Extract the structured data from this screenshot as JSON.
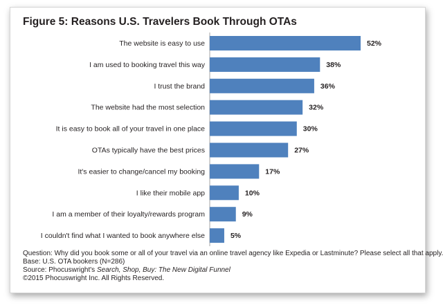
{
  "title": "Figure 5: Reasons U.S. Travelers Book Through OTAs",
  "colors": {
    "bar": "#4f81bd",
    "text": "#231f20",
    "axis": "#a6a6a6"
  },
  "chart_data": {
    "type": "bar",
    "orientation": "horizontal",
    "title": "Figure 5: Reasons U.S. Travelers Book Through OTAs",
    "categories": [
      "The website is easy to use",
      "I am used to booking travel this way",
      "I trust the brand",
      "The website had the most selection",
      "It is easy to book all of your travel in one place",
      "OTAs typically have the best prices",
      "It's easier to change/cancel my booking",
      "I like their mobile app",
      "I am a member of their loyalty/rewards program",
      "I couldn't find what I wanted to book anywhere else"
    ],
    "values": [
      52,
      38,
      36,
      32,
      30,
      27,
      17,
      10,
      9,
      5
    ],
    "value_labels": [
      "52%",
      "38%",
      "36%",
      "32%",
      "30%",
      "27%",
      "17%",
      "10%",
      "9%",
      "5%"
    ],
    "xlim": [
      0,
      52
    ],
    "grid": false,
    "legend": "none"
  },
  "notes": {
    "question": "Question: Why did you book some or all of your travel via an online travel agency like Expedia or Lastminute? Please select all that apply.",
    "base": "Base: U.S. OTA bookers (N=286)",
    "source_prefix": "Source: Phocuswright's ",
    "source_title": "Search, Shop, Buy: The New Digital Funnel",
    "copyright": "©2015 Phocuswright Inc. All Rights Reserved."
  }
}
